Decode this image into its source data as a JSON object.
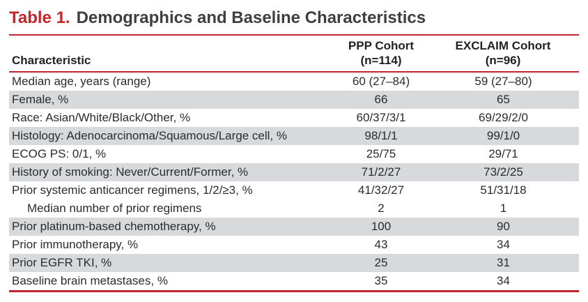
{
  "colors": {
    "accent_red": "#C2262C",
    "row_shade": "#D8D9DA",
    "title_gray": "#3F3F3F",
    "body_text": "#2B2B2B"
  },
  "title": {
    "prefix": "Table 1.",
    "text": "Demographics and Baseline Characteristics"
  },
  "table": {
    "columns": {
      "characteristic": "Characteristic",
      "ppp": {
        "name": "PPP Cohort",
        "n": "(n=114)"
      },
      "exclaim": {
        "name": "EXCLAIM Cohort",
        "n": "(n=96)"
      }
    },
    "rows": [
      {
        "label": "Median age, years (range)",
        "ppp": "60 (27–84)",
        "exclaim": "59 (27–80)",
        "shaded": false,
        "indent": false
      },
      {
        "label": "Female, %",
        "ppp": "66",
        "exclaim": "65",
        "shaded": true,
        "indent": false
      },
      {
        "label": "Race: Asian/White/Black/Other, %",
        "ppp": "60/37/3/1",
        "exclaim": "69/29/2/0",
        "shaded": false,
        "indent": false
      },
      {
        "label": "Histology: Adenocarcinoma/Squamous/Large cell, %",
        "ppp": "98/1/1",
        "exclaim": "99/1/0",
        "shaded": true,
        "indent": false
      },
      {
        "label": "ECOG PS: 0/1, %",
        "ppp": "25/75",
        "exclaim": "29/71",
        "shaded": false,
        "indent": false
      },
      {
        "label": "History of smoking: Never/Current/Former, %",
        "ppp": "71/2/27",
        "exclaim": "73/2/25",
        "shaded": true,
        "indent": false
      },
      {
        "label": "Prior systemic anticancer regimens, 1/2/≥3, %",
        "ppp": "41/32/27",
        "exclaim": "51/31/18",
        "shaded": false,
        "indent": false
      },
      {
        "label": "Median number of prior regimens",
        "ppp": "2",
        "exclaim": "1",
        "shaded": false,
        "indent": true
      },
      {
        "label": "Prior platinum-based chemotherapy, %",
        "ppp": "100",
        "exclaim": "90",
        "shaded": true,
        "indent": false
      },
      {
        "label": "Prior immunotherapy, %",
        "ppp": "43",
        "exclaim": "34",
        "shaded": false,
        "indent": false
      },
      {
        "label": "Prior EGFR TKI, %",
        "ppp": "25",
        "exclaim": "31",
        "shaded": true,
        "indent": false
      },
      {
        "label": "Baseline brain metastases, %",
        "ppp": "35",
        "exclaim": "34",
        "shaded": false,
        "indent": false
      }
    ]
  }
}
